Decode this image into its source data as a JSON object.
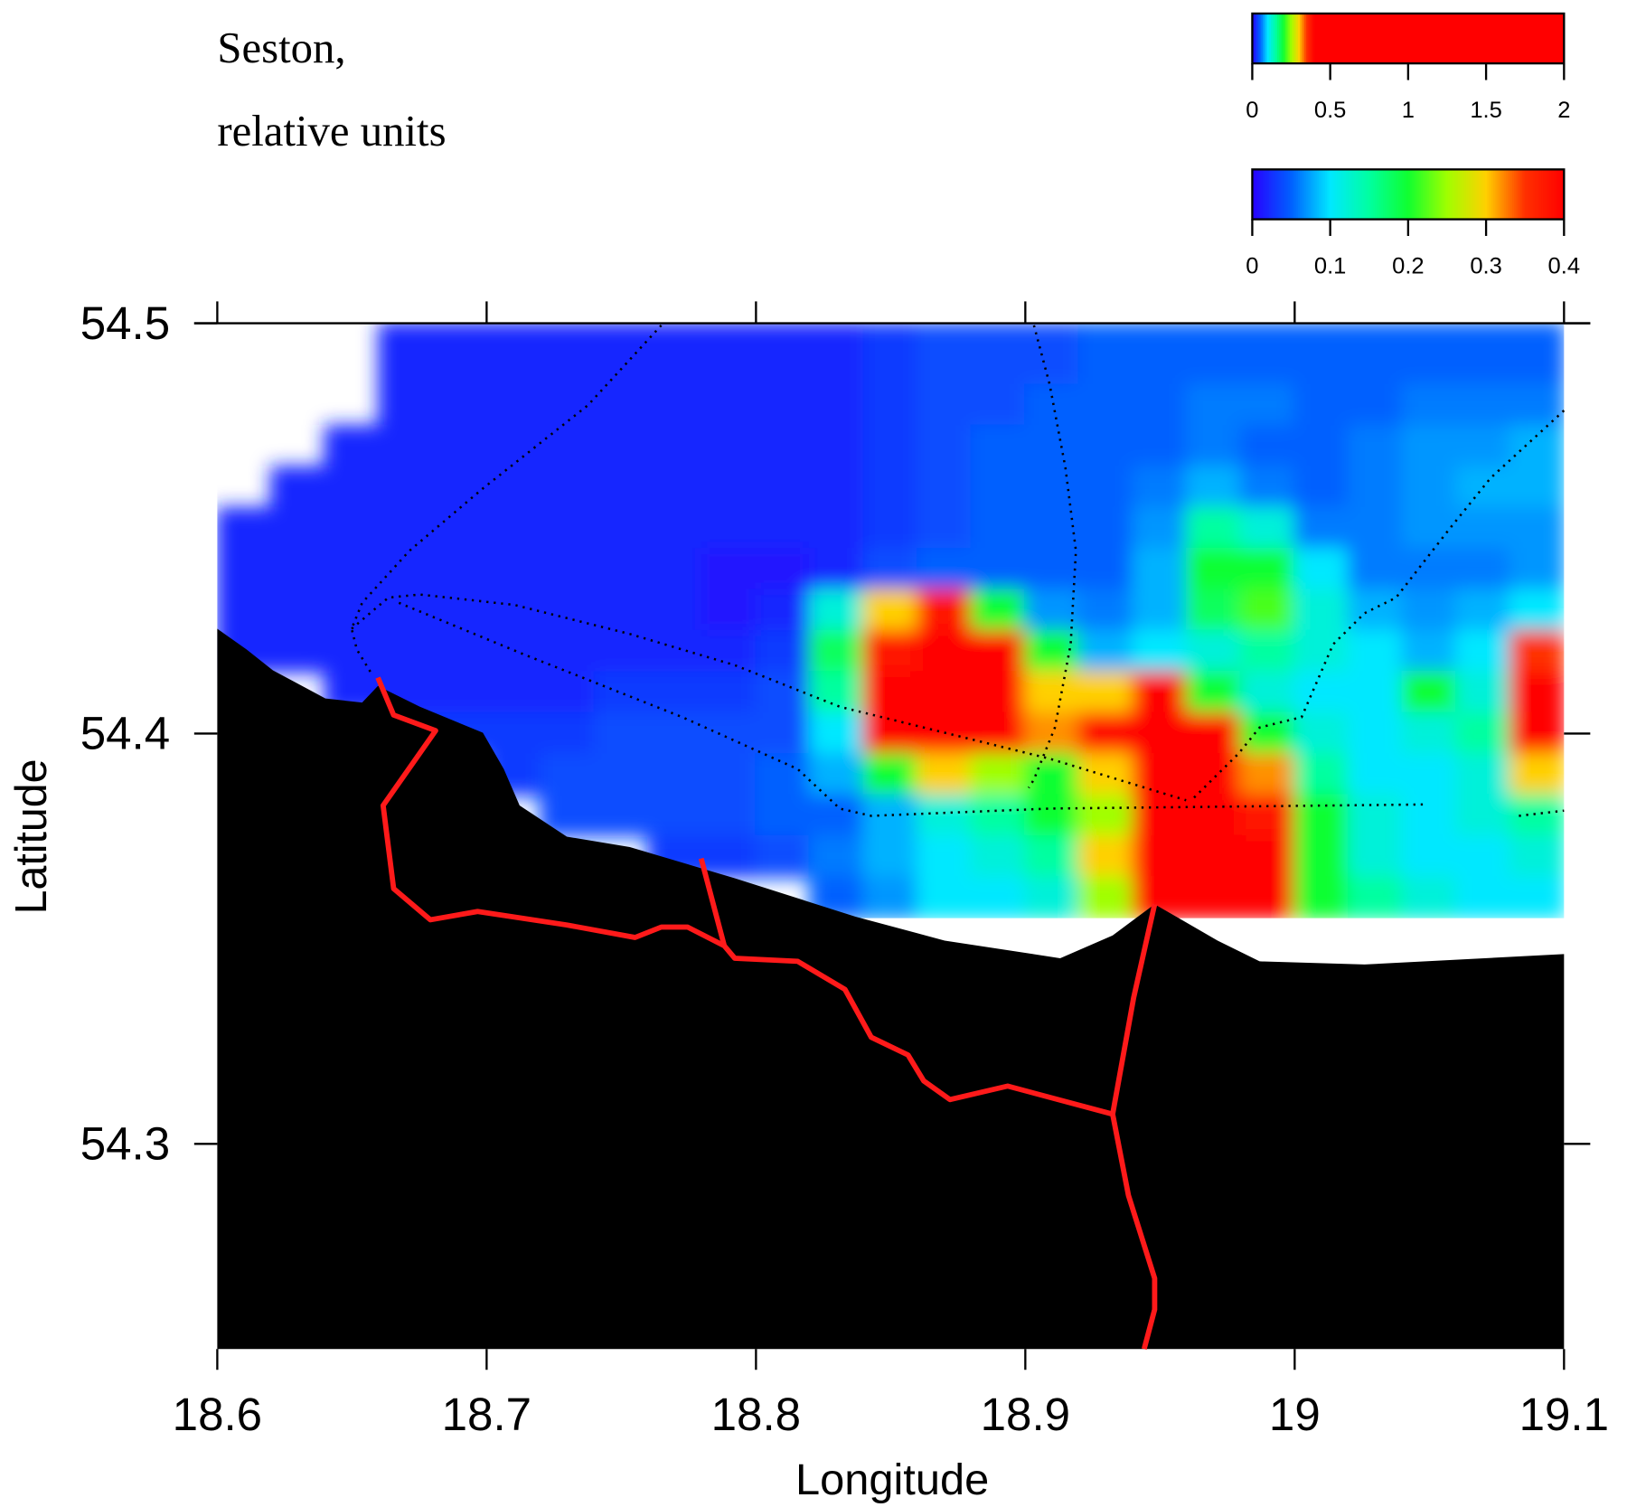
{
  "chart_data": {
    "type": "heatmap",
    "title": "Seston,",
    "subtitle": "relative units",
    "xlabel": "Longitude",
    "ylabel": "Latitude",
    "xlim": [
      18.6,
      19.1
    ],
    "ylim": [
      54.25,
      54.5
    ],
    "xticks": [
      18.6,
      18.7,
      18.8,
      18.9,
      19,
      19.1
    ],
    "yticks": [
      54.3,
      54.4,
      54.5
    ],
    "colors": [
      "#2800ff",
      "#0060ff",
      "#00e8ff",
      "#00ffa0",
      "#10ff30",
      "#a0ff00",
      "#ffd000",
      "#ff3000",
      "#ff0000"
    ],
    "colorbars": [
      {
        "lim": [
          0,
          2
        ],
        "ticks": [
          0,
          0.5,
          1,
          1.5,
          2
        ]
      },
      {
        "lim": [
          0,
          0.4
        ],
        "ticks": [
          0,
          0.1,
          0.2,
          0.3,
          0.4
        ]
      }
    ],
    "x": [
      18.61,
      18.63,
      18.65,
      18.67,
      18.69,
      18.71,
      18.73,
      18.75,
      18.77,
      18.79,
      18.81,
      18.83,
      18.85,
      18.87,
      18.89,
      18.91,
      18.93,
      18.95,
      18.97,
      18.99,
      19.01,
      19.03,
      19.05,
      19.07,
      19.09
    ],
    "y": [
      54.49,
      54.48,
      54.47,
      54.46,
      54.45,
      54.44,
      54.43,
      54.42,
      54.41,
      54.4,
      54.39,
      54.38,
      54.37,
      54.36
    ],
    "z": [
      [
        null,
        null,
        null,
        0.02,
        0.02,
        0.02,
        0.02,
        0.02,
        0.02,
        0.02,
        0.02,
        0.02,
        0.03,
        0.04,
        0.04,
        0.04,
        0.05,
        0.05,
        0.05,
        0.05,
        0.05,
        0.05,
        0.05,
        0.05,
        0.05
      ],
      [
        null,
        null,
        null,
        0.02,
        0.02,
        0.02,
        0.02,
        0.02,
        0.02,
        0.02,
        0.02,
        0.02,
        0.03,
        0.04,
        0.04,
        0.05,
        0.05,
        0.05,
        0.06,
        0.06,
        0.05,
        0.05,
        0.06,
        0.06,
        0.06
      ],
      [
        null,
        null,
        0.02,
        0.02,
        0.02,
        0.02,
        0.02,
        0.02,
        0.02,
        0.02,
        0.02,
        0.02,
        0.03,
        0.04,
        0.05,
        0.05,
        0.05,
        0.05,
        0.06,
        0.05,
        0.05,
        0.06,
        0.07,
        0.07,
        0.08
      ],
      [
        null,
        0.02,
        0.02,
        0.02,
        0.02,
        0.02,
        0.02,
        0.02,
        0.02,
        0.02,
        0.02,
        0.02,
        0.03,
        0.04,
        0.05,
        0.05,
        0.05,
        0.06,
        0.08,
        0.06,
        0.05,
        0.06,
        0.07,
        0.08,
        0.08
      ],
      [
        0.02,
        0.02,
        0.02,
        0.02,
        0.02,
        0.02,
        0.02,
        0.02,
        0.02,
        0.02,
        0.02,
        0.02,
        0.03,
        0.04,
        0.05,
        0.05,
        0.05,
        0.07,
        0.15,
        0.12,
        0.06,
        0.06,
        0.07,
        0.07,
        0.07
      ],
      [
        0.02,
        0.02,
        0.02,
        0.02,
        0.02,
        0.02,
        0.02,
        0.02,
        0.02,
        0.01,
        0.01,
        0.02,
        0.04,
        0.05,
        0.05,
        0.05,
        0.05,
        0.08,
        0.2,
        0.2,
        0.1,
        0.06,
        0.06,
        0.06,
        0.07
      ],
      [
        0.02,
        0.02,
        0.02,
        0.02,
        0.02,
        0.02,
        0.02,
        0.02,
        0.02,
        0.01,
        0.02,
        0.12,
        0.3,
        0.38,
        0.2,
        0.07,
        0.06,
        0.08,
        0.18,
        0.22,
        0.12,
        0.08,
        0.07,
        0.08,
        0.1
      ],
      [
        0.02,
        0.02,
        0.02,
        0.02,
        0.02,
        0.02,
        0.02,
        0.02,
        0.02,
        0.02,
        0.03,
        0.18,
        0.38,
        0.5,
        0.45,
        0.2,
        0.08,
        0.1,
        0.12,
        0.15,
        0.12,
        0.1,
        0.08,
        0.1,
        0.35
      ],
      [
        null,
        null,
        0.02,
        0.02,
        0.02,
        0.02,
        0.02,
        0.03,
        0.03,
        0.03,
        0.04,
        0.15,
        0.5,
        0.5,
        0.5,
        0.3,
        0.3,
        0.4,
        0.2,
        0.12,
        0.1,
        0.1,
        0.2,
        0.12,
        0.5
      ],
      [
        null,
        null,
        null,
        0.03,
        0.03,
        0.03,
        0.03,
        0.04,
        0.04,
        0.04,
        0.04,
        0.1,
        0.4,
        0.5,
        0.5,
        0.32,
        0.4,
        0.5,
        0.45,
        0.2,
        0.12,
        0.1,
        0.12,
        0.15,
        0.5
      ],
      [
        null,
        null,
        null,
        null,
        null,
        0.03,
        0.04,
        0.04,
        0.04,
        0.04,
        0.05,
        0.08,
        0.2,
        0.3,
        0.25,
        0.2,
        0.3,
        0.5,
        0.5,
        0.32,
        0.15,
        0.1,
        0.1,
        0.12,
        0.3
      ],
      [
        null,
        null,
        null,
        null,
        null,
        null,
        0.04,
        0.04,
        0.04,
        0.04,
        0.05,
        0.05,
        0.08,
        0.12,
        0.15,
        0.2,
        0.25,
        0.5,
        0.5,
        0.38,
        0.2,
        0.12,
        0.1,
        0.12,
        0.15
      ],
      [
        null,
        null,
        null,
        null,
        null,
        null,
        null,
        null,
        0.03,
        0.03,
        0.04,
        0.06,
        0.08,
        0.1,
        0.12,
        0.15,
        0.3,
        0.5,
        0.5,
        0.4,
        0.2,
        0.12,
        0.1,
        0.1,
        0.12
      ],
      [
        null,
        null,
        null,
        null,
        null,
        null,
        null,
        null,
        null,
        null,
        null,
        0.05,
        0.07,
        0.1,
        0.1,
        0.12,
        0.25,
        0.45,
        0.5,
        0.4,
        0.2,
        0.15,
        0.12,
        0.1,
        0.1
      ]
    ]
  }
}
